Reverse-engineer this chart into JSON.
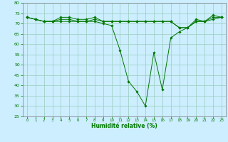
{
  "title": "",
  "xlabel": "Humidité relative (%)",
  "ylabel": "",
  "background_color": "#cceeff",
  "grid_color": "#99ccbb",
  "line_color": "#007700",
  "marker_color": "#007700",
  "ylim": [
    25,
    80
  ],
  "xlim": [
    -0.5,
    23.5
  ],
  "yticks": [
    25,
    30,
    35,
    40,
    45,
    50,
    55,
    60,
    65,
    70,
    75,
    80
  ],
  "xticks": [
    0,
    1,
    2,
    3,
    4,
    5,
    6,
    7,
    8,
    9,
    10,
    11,
    12,
    13,
    14,
    15,
    16,
    17,
    18,
    19,
    20,
    21,
    22,
    23
  ],
  "series_main": [
    73,
    72,
    71,
    71,
    71,
    71,
    71,
    71,
    71,
    70,
    69,
    57,
    42,
    37,
    30,
    56,
    38,
    63,
    66,
    68,
    72,
    71,
    74,
    73
  ],
  "series_upper": [
    73,
    72,
    71,
    71,
    73,
    73,
    72,
    72,
    73,
    71,
    71,
    71,
    71,
    71,
    71,
    71,
    71,
    71,
    68,
    68,
    71,
    71,
    73,
    73
  ],
  "series_flat": [
    73,
    72,
    71,
    71,
    72,
    72,
    71,
    71,
    72,
    71,
    71,
    71,
    71,
    71,
    71,
    71,
    71,
    71,
    68,
    68,
    71,
    71,
    72,
    73
  ]
}
